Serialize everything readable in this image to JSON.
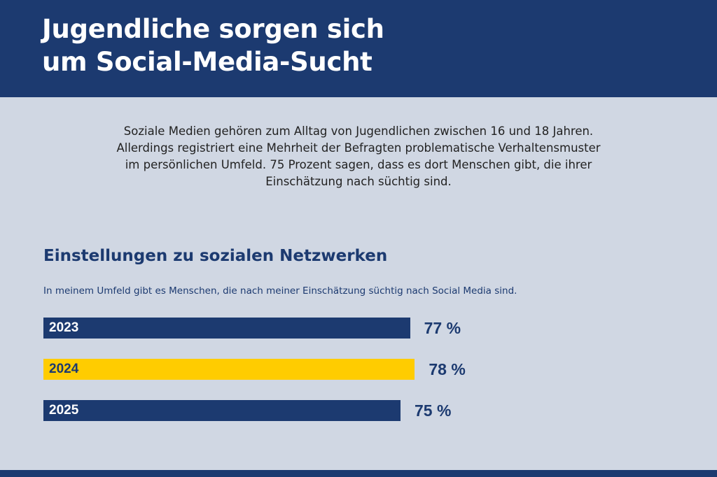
{
  "header": {
    "title": "Jugendliche sorgen sich\num Social-Media-Sucht"
  },
  "intro": "Soziale Medien gehören zum Alltag von Jugendlichen zwischen 16 und 18 Jahren.\nAllerdings registriert eine Mehrheit der Befragten problematische Verhaltensmuster\nim persönlichen Umfeld. 75 Prozent sagen, dass es dort Menschen gibt, die ihrer\nEinschätzung nach süchtig sind.",
  "chart_data": {
    "type": "bar",
    "orientation": "horizontal",
    "title": "Einstellungen zu sozialen Netzwerken",
    "subtitle": "In meinem Umfeld gibt es Menschen, die nach meiner Einschätzung süchtig nach Social Media sind.",
    "categories": [
      "2023",
      "2024",
      "2025"
    ],
    "values": [
      77,
      78,
      75
    ],
    "value_labels": [
      "77 %",
      "78 %",
      "75 %"
    ],
    "unit": "%",
    "colors": [
      "#1c3a70",
      "#ffcc00",
      "#1c3a70"
    ],
    "label_colors": [
      "#ffffff",
      "#1c3a70",
      "#ffffff"
    ],
    "grid": false
  }
}
